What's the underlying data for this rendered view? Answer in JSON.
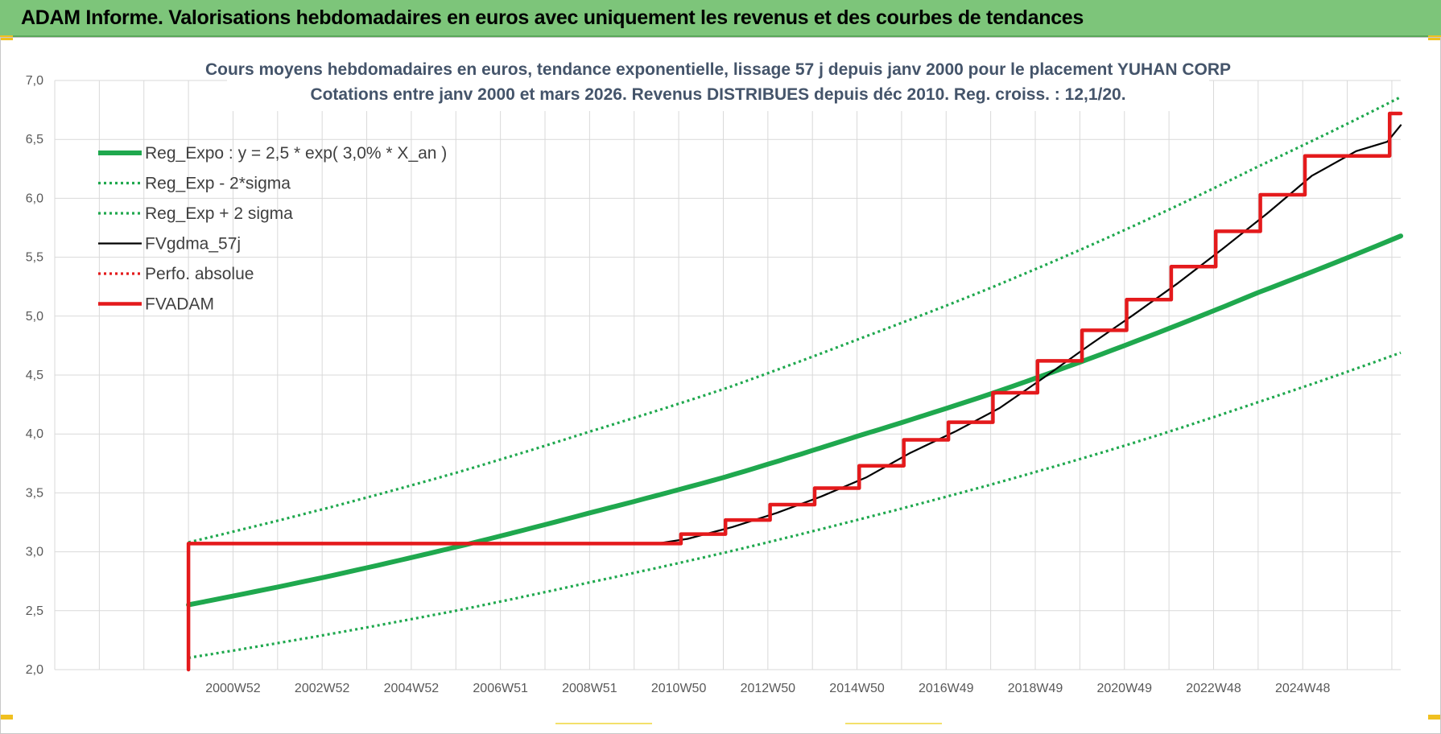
{
  "banner": {
    "title": "ADAM Informe. Valorisations hebdomadaires en euros avec uniquement les revenus et des courbes de tendances"
  },
  "colors": {
    "banner_bg": "#7dc57a",
    "trend_green": "#1fa84e",
    "fvadam_red": "#e41a1c",
    "fvgdma_black": "#000000",
    "grid": "#d9d9d9"
  },
  "chart_data": {
    "type": "line",
    "title_line1": "Cours moyens hebdomadaires en euros, tendance exponentielle, lissage 57 j depuis janv 2000 pour le placement YUHAN CORP",
    "title_line2": "Cotations entre janv 2000 et mars 2026. Revenus DISTRIBUES depuis déc 2010. Reg. croiss. : 12,1/20.",
    "xlabel": "",
    "ylabel": "",
    "ylim": [
      2.0,
      7.0
    ],
    "xlim": [
      1996.0,
      2026.2
    ],
    "y_ticks": [
      "7,0",
      "6,5",
      "6,0",
      "5,5",
      "5,0",
      "4,5",
      "4,0",
      "3,5",
      "3,0",
      "2,5",
      "2,0"
    ],
    "x_tick_labels": [
      "2000W52",
      "2002W52",
      "2004W52",
      "2006W51",
      "2008W51",
      "2010W50",
      "2012W50",
      "2014W50",
      "2016W49",
      "2018W49",
      "2020W49",
      "2022W48",
      "2024W48"
    ],
    "x_tick_years": [
      2000.0,
      2002.0,
      2004.0,
      2006.0,
      2008.0,
      2010.0,
      2012.0,
      2014.0,
      2016.0,
      2018.0,
      2020.0,
      2022.0,
      2024.0
    ],
    "grid": true,
    "legend_position": "top-left",
    "legend": [
      {
        "label": "Reg_Expo : y = 2,5 * exp( 3,0% *  X_an )",
        "style": "solid-thick",
        "color": "#1fa84e"
      },
      {
        "label": "Reg_Exp - 2*sigma",
        "style": "dotted",
        "color": "#1fa84e"
      },
      {
        "label": "Reg_Exp + 2 sigma",
        "style": "dotted",
        "color": "#1fa84e"
      },
      {
        "label": "FVgdma_57j",
        "style": "solid",
        "color": "#000000"
      },
      {
        "label": "Perfo. absolue",
        "style": "dotted",
        "color": "#e41a1c"
      },
      {
        "label": "FVADAM",
        "style": "solid-thick",
        "color": "#e41a1c"
      }
    ],
    "series": [
      {
        "name": "Reg_Expo : y = 2,5 * exp( 3,0% *  X_an )",
        "x": [
          1999.0,
          2002.0,
          2005.0,
          2008.0,
          2011.0,
          2014.0,
          2017.0,
          2020.0,
          2023.0,
          2026.2
        ],
        "y": [
          2.55,
          2.78,
          3.04,
          3.33,
          3.63,
          3.98,
          4.34,
          4.75,
          5.2,
          5.68
        ]
      },
      {
        "name": "Reg_Exp - 2*sigma",
        "x": [
          1999.0,
          2002.0,
          2005.0,
          2008.0,
          2011.0,
          2014.0,
          2017.0,
          2020.0,
          2023.0,
          2026.2
        ],
        "y": [
          2.1,
          2.29,
          2.5,
          2.74,
          2.99,
          3.27,
          3.57,
          3.9,
          4.27,
          4.69
        ]
      },
      {
        "name": "Reg_Exp + 2 sigma",
        "x": [
          1999.0,
          2002.0,
          2005.0,
          2008.0,
          2011.0,
          2014.0,
          2017.0,
          2020.0,
          2023.0,
          2026.2
        ],
        "y": [
          3.08,
          3.36,
          3.67,
          4.02,
          4.38,
          4.8,
          5.24,
          5.73,
          6.27,
          6.86
        ]
      },
      {
        "name": "FVADAM",
        "x": [
          1999.0,
          1999.0,
          2010.05,
          2010.05,
          2011.05,
          2011.05,
          2012.05,
          2012.05,
          2013.05,
          2013.05,
          2014.05,
          2014.05,
          2015.05,
          2015.05,
          2016.05,
          2016.05,
          2017.05,
          2017.05,
          2018.05,
          2018.05,
          2019.05,
          2019.05,
          2020.05,
          2020.05,
          2021.05,
          2021.05,
          2022.05,
          2022.05,
          2023.05,
          2023.05,
          2024.05,
          2024.05,
          2025.05,
          2025.05,
          2025.95,
          2025.95,
          2026.2
        ],
        "y": [
          2.0,
          3.07,
          3.07,
          3.15,
          3.15,
          3.27,
          3.27,
          3.4,
          3.4,
          3.54,
          3.54,
          3.73,
          3.73,
          3.95,
          3.95,
          4.1,
          4.1,
          4.35,
          4.35,
          4.62,
          4.62,
          4.88,
          4.88,
          5.14,
          5.14,
          5.42,
          5.42,
          5.72,
          5.72,
          6.03,
          6.03,
          6.36,
          6.36,
          6.36,
          6.36,
          6.72,
          6.72
        ]
      },
      {
        "name": "FVgdma_57j",
        "x": [
          2009.5,
          2010.2,
          2011.2,
          2012.2,
          2013.2,
          2014.2,
          2015.2,
          2016.2,
          2017.2,
          2018.2,
          2019.2,
          2020.2,
          2021.2,
          2022.2,
          2023.2,
          2024.2,
          2025.2,
          2025.9,
          2026.2
        ],
        "y": [
          3.07,
          3.11,
          3.21,
          3.33,
          3.47,
          3.63,
          3.84,
          4.02,
          4.22,
          4.48,
          4.75,
          5.01,
          5.28,
          5.57,
          5.87,
          6.19,
          6.4,
          6.48,
          6.62
        ]
      }
    ]
  }
}
